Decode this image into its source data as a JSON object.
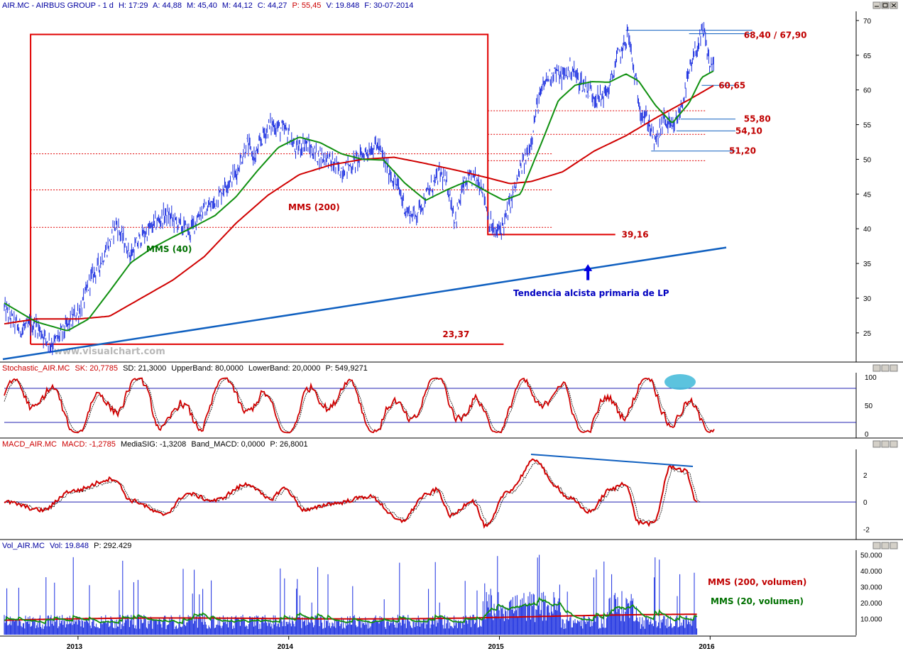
{
  "chart_data": [
    {
      "type": "line",
      "panel": "price",
      "header": {
        "symbol": "AIR.MC - AIRBUS GROUP - 1 d",
        "high": "H: 17:29",
        "avg": "A: 44,88",
        "max": "M: 45,40",
        "min": "M: 44,12",
        "close": "C: 44,27",
        "p": "P: 55,45",
        "vol": "V: 19.848",
        "date": "F: 30-07-2014"
      },
      "x_ticks": [
        "2013",
        "2014",
        "2015",
        "2016"
      ],
      "y_ticks": [
        "25",
        "30",
        "35",
        "40",
        "45",
        "50",
        "55",
        "60",
        "65",
        "70"
      ],
      "ylim": [
        21,
        70.5
      ],
      "series": [
        {
          "name": "MMS (40)",
          "color": "#008000"
        },
        {
          "name": "MMS (200)",
          "color": "#cc0000"
        }
      ],
      "price_path": [
        [
          2012.65,
          28.5
        ],
        [
          2012.72,
          25.6
        ],
        [
          2012.8,
          26.2
        ],
        [
          2012.85,
          24.1
        ],
        [
          2012.88,
          23.4
        ],
        [
          2012.93,
          25.2
        ],
        [
          2012.98,
          27.3
        ],
        [
          2013.02,
          28.9
        ],
        [
          2013.06,
          32.8
        ],
        [
          2013.1,
          34.8
        ],
        [
          2013.15,
          37.9
        ],
        [
          2013.18,
          40.8
        ],
        [
          2013.22,
          38.1
        ],
        [
          2013.25,
          36.2
        ],
        [
          2013.3,
          38.8
        ],
        [
          2013.36,
          40.5
        ],
        [
          2013.42,
          42.1
        ],
        [
          2013.48,
          40.6
        ],
        [
          2013.53,
          39.5
        ],
        [
          2013.58,
          42.4
        ],
        [
          2013.65,
          43.6
        ],
        [
          2013.7,
          46.4
        ],
        [
          2013.75,
          47.9
        ],
        [
          2013.8,
          52.3
        ],
        [
          2013.84,
          50.1
        ],
        [
          2013.88,
          53.6
        ],
        [
          2013.92,
          55.1
        ],
        [
          2013.96,
          54.4
        ],
        [
          2014.0,
          53.8
        ],
        [
          2014.03,
          51.3
        ],
        [
          2014.08,
          52.4
        ],
        [
          2014.13,
          50.6
        ],
        [
          2014.18,
          50.3
        ],
        [
          2014.24,
          48.4
        ],
        [
          2014.3,
          49.2
        ],
        [
          2014.36,
          50.9
        ],
        [
          2014.42,
          52.2
        ],
        [
          2014.47,
          48.6
        ],
        [
          2014.52,
          45.9
        ],
        [
          2014.56,
          42.4
        ],
        [
          2014.6,
          41.9
        ],
        [
          2014.66,
          45.1
        ],
        [
          2014.72,
          48.1
        ],
        [
          2014.76,
          45.6
        ],
        [
          2014.79,
          41.1
        ],
        [
          2014.83,
          46.3
        ],
        [
          2014.88,
          47.5
        ],
        [
          2014.92,
          46.1
        ],
        [
          2014.95,
          41.2
        ],
        [
          2014.98,
          39.2
        ],
        [
          2015.02,
          40.6
        ],
        [
          2015.06,
          44.4
        ],
        [
          2015.1,
          48.5
        ],
        [
          2015.14,
          51.2
        ],
        [
          2015.18,
          57.8
        ],
        [
          2015.22,
          61.4
        ],
        [
          2015.26,
          62.7
        ],
        [
          2015.3,
          61.8
        ],
        [
          2015.34,
          63.2
        ],
        [
          2015.38,
          61.3
        ],
        [
          2015.42,
          60.1
        ],
        [
          2015.47,
          58.6
        ],
        [
          2015.52,
          60.1
        ],
        [
          2015.56,
          64.7
        ],
        [
          2015.59,
          66.1
        ],
        [
          2015.61,
          68.4
        ],
        [
          2015.64,
          62.3
        ],
        [
          2015.67,
          57.1
        ],
        [
          2015.71,
          55.2
        ],
        [
          2015.74,
          52.1
        ],
        [
          2015.78,
          55.9
        ],
        [
          2015.82,
          54.1
        ],
        [
          2015.86,
          57.2
        ],
        [
          2015.9,
          62.3
        ],
        [
          2015.94,
          66.4
        ],
        [
          2015.97,
          68.3
        ],
        [
          2016.0,
          63.2
        ],
        [
          2016.02,
          64.5
        ]
      ],
      "mms40_path": [
        [
          2012.65,
          29.3
        ],
        [
          2012.8,
          26.6
        ],
        [
          2012.95,
          25.3
        ],
        [
          2013.05,
          27.0
        ],
        [
          2013.15,
          31.0
        ],
        [
          2013.25,
          35.1
        ],
        [
          2013.35,
          37.2
        ],
        [
          2013.45,
          38.8
        ],
        [
          2013.55,
          40.3
        ],
        [
          2013.65,
          41.9
        ],
        [
          2013.75,
          44.6
        ],
        [
          2013.85,
          48.3
        ],
        [
          2013.95,
          51.7
        ],
        [
          2014.05,
          53.2
        ],
        [
          2014.15,
          52.4
        ],
        [
          2014.25,
          50.8
        ],
        [
          2014.35,
          50.0
        ],
        [
          2014.45,
          49.9
        ],
        [
          2014.55,
          46.6
        ],
        [
          2014.65,
          44.1
        ],
        [
          2014.75,
          45.6
        ],
        [
          2014.85,
          46.9
        ],
        [
          2014.95,
          45.2
        ],
        [
          2015.02,
          44.1
        ],
        [
          2015.1,
          45.0
        ],
        [
          2015.2,
          52.4
        ],
        [
          2015.28,
          58.5
        ],
        [
          2015.36,
          60.7
        ],
        [
          2015.44,
          61.2
        ],
        [
          2015.52,
          61.1
        ],
        [
          2015.6,
          62.3
        ],
        [
          2015.66,
          61.3
        ],
        [
          2015.74,
          57.8
        ],
        [
          2015.82,
          55.2
        ],
        [
          2015.9,
          58.1
        ],
        [
          2015.96,
          61.8
        ],
        [
          2016.02,
          62.8
        ]
      ],
      "mms200_path": [
        [
          2012.65,
          26.3
        ],
        [
          2012.8,
          27.0
        ],
        [
          2013.0,
          27.0
        ],
        [
          2013.15,
          27.4
        ],
        [
          2013.3,
          30.0
        ],
        [
          2013.45,
          32.6
        ],
        [
          2013.6,
          36.0
        ],
        [
          2013.75,
          40.8
        ],
        [
          2013.9,
          44.8
        ],
        [
          2014.05,
          47.8
        ],
        [
          2014.2,
          49.2
        ],
        [
          2014.35,
          50.0
        ],
        [
          2014.5,
          50.3
        ],
        [
          2014.65,
          49.4
        ],
        [
          2014.8,
          48.4
        ],
        [
          2014.95,
          47.3
        ],
        [
          2015.05,
          46.5
        ],
        [
          2015.15,
          46.8
        ],
        [
          2015.3,
          48.2
        ],
        [
          2015.45,
          51.2
        ],
        [
          2015.6,
          53.4
        ],
        [
          2015.75,
          56.1
        ],
        [
          2015.9,
          58.6
        ],
        [
          2016.02,
          60.7
        ]
      ],
      "annotations": [
        {
          "label": "68,40 / 67,90",
          "color": "#cc0000"
        },
        {
          "label": "60,65",
          "color": "#cc0000"
        },
        {
          "label": "55,80",
          "color": "#cc0000"
        },
        {
          "label": "54,10",
          "color": "#cc0000"
        },
        {
          "label": "51,20",
          "color": "#cc0000"
        },
        {
          "label": "39,16",
          "color": "#cc0000"
        },
        {
          "label": "23,37",
          "color": "#cc0000"
        },
        {
          "label": "MMS (200)",
          "color": "#cc0000"
        },
        {
          "label": "MMS (40)",
          "color": "#008000"
        },
        {
          "label": "Tendencia alcista primaria de LP",
          "color": "#0000c0"
        }
      ],
      "watermark": "www.visualchart.com"
    },
    {
      "type": "line",
      "panel": "stochastic",
      "header": {
        "name": "Stochastic_AIR.MC",
        "sk": "SK: 20,7785",
        "sd": "SD: 21,3000",
        "upper": "UpperBand: 80,0000",
        "lower": "LowerBand: 20,0000",
        "p": "P: 549,9271"
      },
      "y_ticks": [
        "0",
        "50",
        "100"
      ],
      "ylim": [
        0,
        100
      ],
      "bands": [
        20,
        80
      ]
    },
    {
      "type": "line",
      "panel": "macd",
      "header": {
        "name": "MACD_AIR.MC",
        "macd": "MACD: -1,2785",
        "sig": "MediaSIG: -1,3208",
        "band": "Band_MACD: 0,0000",
        "p": "P: 26,8001"
      },
      "y_ticks": [
        "-2",
        "0",
        "2"
      ],
      "ylim": [
        -2,
        3.5
      ],
      "zero_line": 0
    },
    {
      "type": "bar",
      "panel": "volume",
      "header": {
        "name": "Vol_AIR.MC",
        "vol": "Vol: 19.848",
        "p": "P: 292.429"
      },
      "y_ticks": [
        "10.000",
        "20.000",
        "30.000",
        "40.000",
        "50.000"
      ],
      "ylim": [
        0,
        52000
      ],
      "series": [
        {
          "name": "MMS (200, volumen)",
          "color": "#cc0000"
        },
        {
          "name": "MMS (20, volumen)",
          "color": "#008000"
        }
      ]
    }
  ]
}
